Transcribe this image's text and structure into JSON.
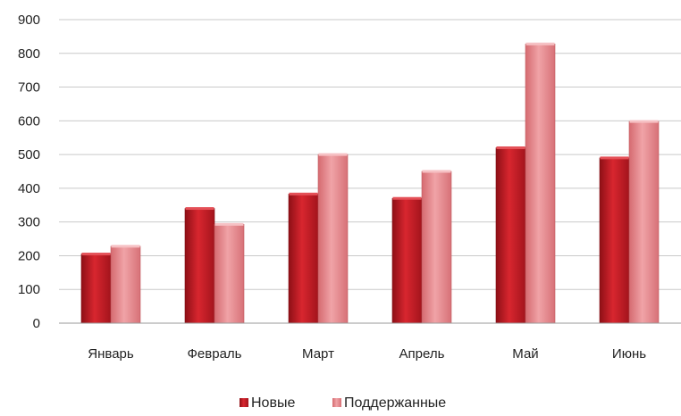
{
  "chart_data": {
    "type": "bar",
    "categories": [
      "Январь",
      "Февраль",
      "Март",
      "Апрель",
      "Май",
      "Июнь"
    ],
    "series": [
      {
        "name": "Новые",
        "values": [
          205,
          340,
          383,
          370,
          520,
          490
        ],
        "color": "#c8222b"
      },
      {
        "name": "Поддержанные",
        "values": [
          228,
          293,
          500,
          450,
          828,
          598
        ],
        "color": "#e88a8f"
      }
    ],
    "title": "",
    "xlabel": "",
    "ylabel": "",
    "ylim": [
      0,
      900
    ],
    "yticks": [
      "0",
      "100",
      "200",
      "300",
      "400",
      "500",
      "600",
      "700",
      "800",
      "900"
    ],
    "grid": true,
    "legend_position": "bottom"
  }
}
